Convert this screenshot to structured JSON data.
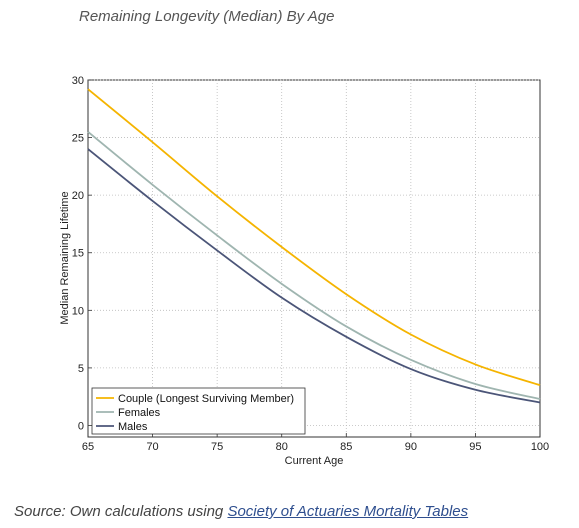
{
  "header": {
    "title": "Remaining Longevity (Median) By Age"
  },
  "footer": {
    "source_prefix": "Source: Own calculations using ",
    "source_link": "Society of Actuaries Mortality Tables"
  },
  "colors": {
    "couple": "#f5b400",
    "females": "#9fb5b0",
    "males": "#4b5578",
    "grid": "#bbbbbb",
    "link": "#2f4f8f"
  },
  "chart_data": {
    "type": "line",
    "title": "",
    "xlabel": "Current Age",
    "ylabel": "Median Remaining Lifetime",
    "xlim": [
      65,
      100
    ],
    "ylim": [
      -1,
      30
    ],
    "xticks": [
      65,
      70,
      75,
      80,
      85,
      90,
      95,
      100
    ],
    "yticks": [
      0,
      5,
      10,
      15,
      20,
      25,
      30
    ],
    "grid": true,
    "legend_position": "bottom-left",
    "x": [
      65,
      70,
      75,
      80,
      85,
      90,
      95,
      100
    ],
    "series": [
      {
        "name": "Couple (Longest Surviving Member)",
        "color": "#f5b400",
        "values": [
          29.2,
          24.6,
          19.9,
          15.5,
          11.4,
          7.9,
          5.3,
          3.5
        ]
      },
      {
        "name": "Females",
        "color": "#9fb5b0",
        "values": [
          25.5,
          20.9,
          16.5,
          12.3,
          8.6,
          5.7,
          3.6,
          2.3
        ]
      },
      {
        "name": "Males",
        "color": "#4b5578",
        "values": [
          24.0,
          19.5,
          15.2,
          11.1,
          7.7,
          4.9,
          3.1,
          2.0
        ]
      }
    ]
  }
}
